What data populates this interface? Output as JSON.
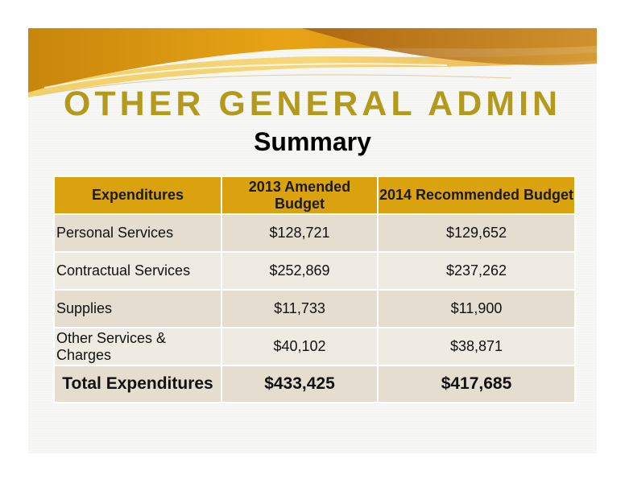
{
  "slide": {
    "title": "OTHER GENERAL ADMIN",
    "subtitle": "Summary",
    "colors": {
      "title": "#b39a1d",
      "header_fill": "#dba20f",
      "row_fill": "#e4ddd0",
      "row_fill_alt": "#efebe3"
    }
  },
  "table": {
    "headers": [
      "Expenditures",
      "2013 Amended Budget",
      "2014 Recommended Budget"
    ],
    "rows": [
      {
        "label": "Personal Services",
        "budget_2013": "$128,721",
        "budget_2014": "$129,652"
      },
      {
        "label": "Contractual Services",
        "budget_2013": "$252,869",
        "budget_2014": "$237,262"
      },
      {
        "label": "Supplies",
        "budget_2013": "$11,733",
        "budget_2014": "$11,900"
      },
      {
        "label": "Other Services & Charges",
        "budget_2013": "$40,102",
        "budget_2014": "$38,871"
      }
    ],
    "total": {
      "label": "Total Expenditures",
      "budget_2013": "$433,425",
      "budget_2014": "$417,685"
    }
  }
}
